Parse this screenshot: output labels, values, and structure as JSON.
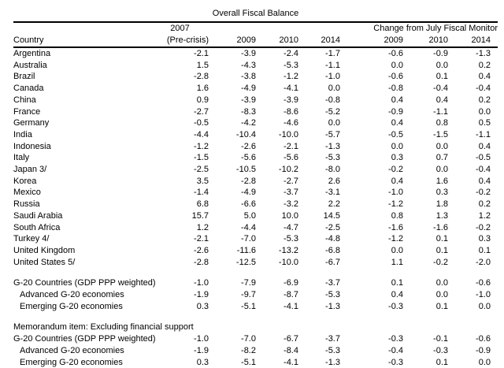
{
  "document": {
    "title": "Overall Fiscal Balance"
  },
  "table": {
    "header": {
      "country_label": "Country",
      "col2007": [
        "2007",
        "(Pre-crisis)"
      ],
      "years": [
        "2009",
        "2010",
        "2014"
      ],
      "change_group_label": "Change from July Fiscal Monitor",
      "change_years": [
        "2009",
        "2010",
        "2014"
      ]
    },
    "rows": [
      {
        "label": "Argentina",
        "values": [
          "-2.1",
          "-3.9",
          "-2.4",
          "-1.7",
          "-0.6",
          "-0.9",
          "-1.3"
        ]
      },
      {
        "label": "Australia",
        "values": [
          "1.5",
          "-4.3",
          "-5.3",
          "-1.1",
          "0.0",
          "0.0",
          "0.2"
        ]
      },
      {
        "label": "Brazil",
        "values": [
          "-2.8",
          "-3.8",
          "-1.2",
          "-1.0",
          "-0.6",
          "0.1",
          "0.4"
        ]
      },
      {
        "label": "Canada",
        "values": [
          "1.6",
          "-4.9",
          "-4.1",
          "0.0",
          "-0.8",
          "-0.4",
          "-0.4"
        ]
      },
      {
        "label": "China",
        "values": [
          "0.9",
          "-3.9",
          "-3.9",
          "-0.8",
          "0.4",
          "0.4",
          "0.2"
        ]
      },
      {
        "label": "France",
        "values": [
          "-2.7",
          "-8.3",
          "-8.6",
          "-5.2",
          "-0.9",
          "-1.1",
          "0.0"
        ]
      },
      {
        "label": "Germany",
        "values": [
          "-0.5",
          "-4.2",
          "-4.6",
          "0.0",
          "0.4",
          "0.8",
          "0.5"
        ]
      },
      {
        "label": "India",
        "values": [
          "-4.4",
          "-10.4",
          "-10.0",
          "-5.7",
          "-0.5",
          "-1.5",
          "-1.1"
        ]
      },
      {
        "label": "Indonesia",
        "values": [
          "-1.2",
          "-2.6",
          "-2.1",
          "-1.3",
          "0.0",
          "0.0",
          "0.4"
        ]
      },
      {
        "label": "Italy",
        "values": [
          "-1.5",
          "-5.6",
          "-5.6",
          "-5.3",
          "0.3",
          "0.7",
          "-0.5"
        ]
      },
      {
        "label": "Japan 3/",
        "values": [
          "-2.5",
          "-10.5",
          "-10.2",
          "-8.0",
          "-0.2",
          "0.0",
          "-0.4"
        ]
      },
      {
        "label": "Korea",
        "values": [
          "3.5",
          "-2.8",
          "-2.7",
          "2.6",
          "0.4",
          "1.6",
          "0.4"
        ]
      },
      {
        "label": "Mexico",
        "values": [
          "-1.4",
          "-4.9",
          "-3.7",
          "-3.1",
          "-1.0",
          "0.3",
          "-0.2"
        ]
      },
      {
        "label": "Russia",
        "values": [
          "6.8",
          "-6.6",
          "-3.2",
          "2.2",
          "-1.2",
          "1.8",
          "0.2"
        ]
      },
      {
        "label": "Saudi Arabia",
        "values": [
          "15.7",
          "5.0",
          "10.0",
          "14.5",
          "0.8",
          "1.3",
          "1.2"
        ]
      },
      {
        "label": "South Africa",
        "values": [
          "1.2",
          "-4.4",
          "-4.7",
          "-2.5",
          "-1.6",
          "-1.6",
          "-0.2"
        ]
      },
      {
        "label": "Turkey 4/",
        "values": [
          "-2.1",
          "-7.0",
          "-5.3",
          "-4.8",
          "-1.2",
          "0.1",
          "0.3"
        ]
      },
      {
        "label": "United Kingdom",
        "values": [
          "-2.6",
          "-11.6",
          "-13.2",
          "-6.8",
          "0.0",
          "0.1",
          "0.1"
        ]
      },
      {
        "label": "United States 5/",
        "values": [
          "-2.8",
          "-12.5",
          "-10.0",
          "-6.7",
          "1.1",
          "-0.2",
          "-2.0"
        ]
      },
      {
        "type": "spacer"
      },
      {
        "label": "G-20 Countries (GDP PPP weighted)",
        "values": [
          "-1.0",
          "-7.9",
          "-6.9",
          "-3.7",
          "0.1",
          "0.0",
          "-0.6"
        ]
      },
      {
        "label": "Advanced G-20 economies",
        "indent": true,
        "values": [
          "-1.9",
          "-9.7",
          "-8.7",
          "-5.3",
          "0.4",
          "0.0",
          "-1.0"
        ]
      },
      {
        "label": "Emerging G-20 economies",
        "indent": true,
        "values": [
          "0.3",
          "-5.1",
          "-4.1",
          "-1.3",
          "-0.3",
          "0.1",
          "0.0"
        ]
      },
      {
        "type": "spacer"
      },
      {
        "type": "section_label",
        "label": "Memorandum item: Excluding financial support"
      },
      {
        "label": "G-20 Countries (GDP PPP weighted)",
        "values": [
          "-1.0",
          "-7.0",
          "-6.7",
          "-3.7",
          "-0.3",
          "-0.1",
          "-0.6"
        ]
      },
      {
        "label": "Advanced G-20 economies",
        "indent": true,
        "values": [
          "-1.9",
          "-8.2",
          "-8.4",
          "-5.3",
          "-0.4",
          "-0.3",
          "-0.9"
        ]
      },
      {
        "label": "Emerging G-20 economies",
        "indent": true,
        "values": [
          "0.3",
          "-5.1",
          "-4.1",
          "-1.3",
          "-0.3",
          "0.1",
          "0.0"
        ]
      }
    ]
  }
}
